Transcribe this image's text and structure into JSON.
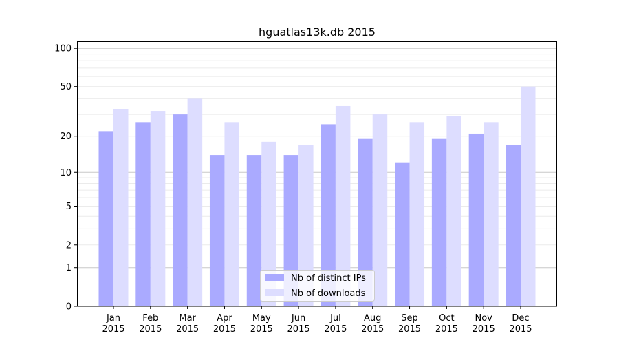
{
  "chart_data": {
    "type": "bar",
    "title": "hguatlas13k.db 2015",
    "xlabel": "",
    "ylabel": "",
    "yscale": "log(1+y)",
    "ylim": [
      0,
      110
    ],
    "yticks": [
      0,
      1,
      2,
      5,
      10,
      20,
      50,
      100
    ],
    "grid": true,
    "legend_position": "bottom-center",
    "categories": [
      "Jan\n2015",
      "Feb\n2015",
      "Mar\n2015",
      "Apr\n2015",
      "May\n2015",
      "Jun\n2015",
      "Jul\n2015",
      "Aug\n2015",
      "Sep\n2015",
      "Oct\n2015",
      "Nov\n2015",
      "Dec\n2015"
    ],
    "series": [
      {
        "name": "Nb of distinct IPs",
        "color": "#aaaaff",
        "values": [
          22,
          26,
          30,
          14,
          14,
          14,
          25,
          19,
          12,
          19,
          21,
          17
        ]
      },
      {
        "name": "Nb of downloads",
        "color": "#ddddff",
        "values": [
          33,
          32,
          40,
          26,
          18,
          17,
          35,
          30,
          26,
          29,
          26,
          50
        ]
      }
    ]
  }
}
